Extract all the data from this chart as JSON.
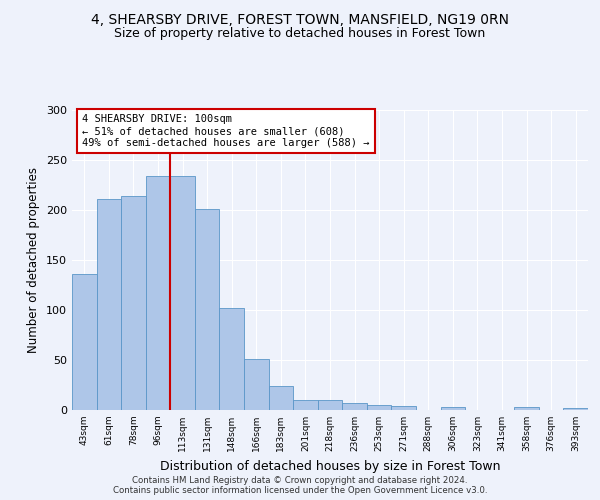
{
  "title": "4, SHEARSBY DRIVE, FOREST TOWN, MANSFIELD, NG19 0RN",
  "subtitle": "Size of property relative to detached houses in Forest Town",
  "xlabel": "Distribution of detached houses by size in Forest Town",
  "ylabel": "Number of detached properties",
  "footer_line1": "Contains HM Land Registry data © Crown copyright and database right 2024.",
  "footer_line2": "Contains public sector information licensed under the Open Government Licence v3.0.",
  "bar_labels": [
    "43sqm",
    "61sqm",
    "78sqm",
    "96sqm",
    "113sqm",
    "131sqm",
    "148sqm",
    "166sqm",
    "183sqm",
    "201sqm",
    "218sqm",
    "236sqm",
    "253sqm",
    "271sqm",
    "288sqm",
    "306sqm",
    "323sqm",
    "341sqm",
    "358sqm",
    "376sqm",
    "393sqm"
  ],
  "bar_values": [
    136,
    211,
    214,
    234,
    234,
    201,
    102,
    51,
    24,
    10,
    10,
    7,
    5,
    4,
    0,
    3,
    0,
    0,
    3,
    0,
    2
  ],
  "bar_color": "#aec6e8",
  "bar_edge_color": "#5a96c8",
  "red_line_x": 3.5,
  "annotation_line1": "4 SHEARSBY DRIVE: 100sqm",
  "annotation_line2": "← 51% of detached houses are smaller (608)",
  "annotation_line3": "49% of semi-detached houses are larger (588) →",
  "annotation_box_color": "#ffffff",
  "annotation_box_edge": "#cc0000",
  "red_line_color": "#cc0000",
  "ylim": [
    0,
    300
  ],
  "yticks": [
    0,
    50,
    100,
    150,
    200,
    250,
    300
  ],
  "background_color": "#eef2fb",
  "grid_color": "#ffffff",
  "title_fontsize": 10,
  "subtitle_fontsize": 9,
  "ylabel_fontsize": 8.5,
  "xlabel_fontsize": 9
}
